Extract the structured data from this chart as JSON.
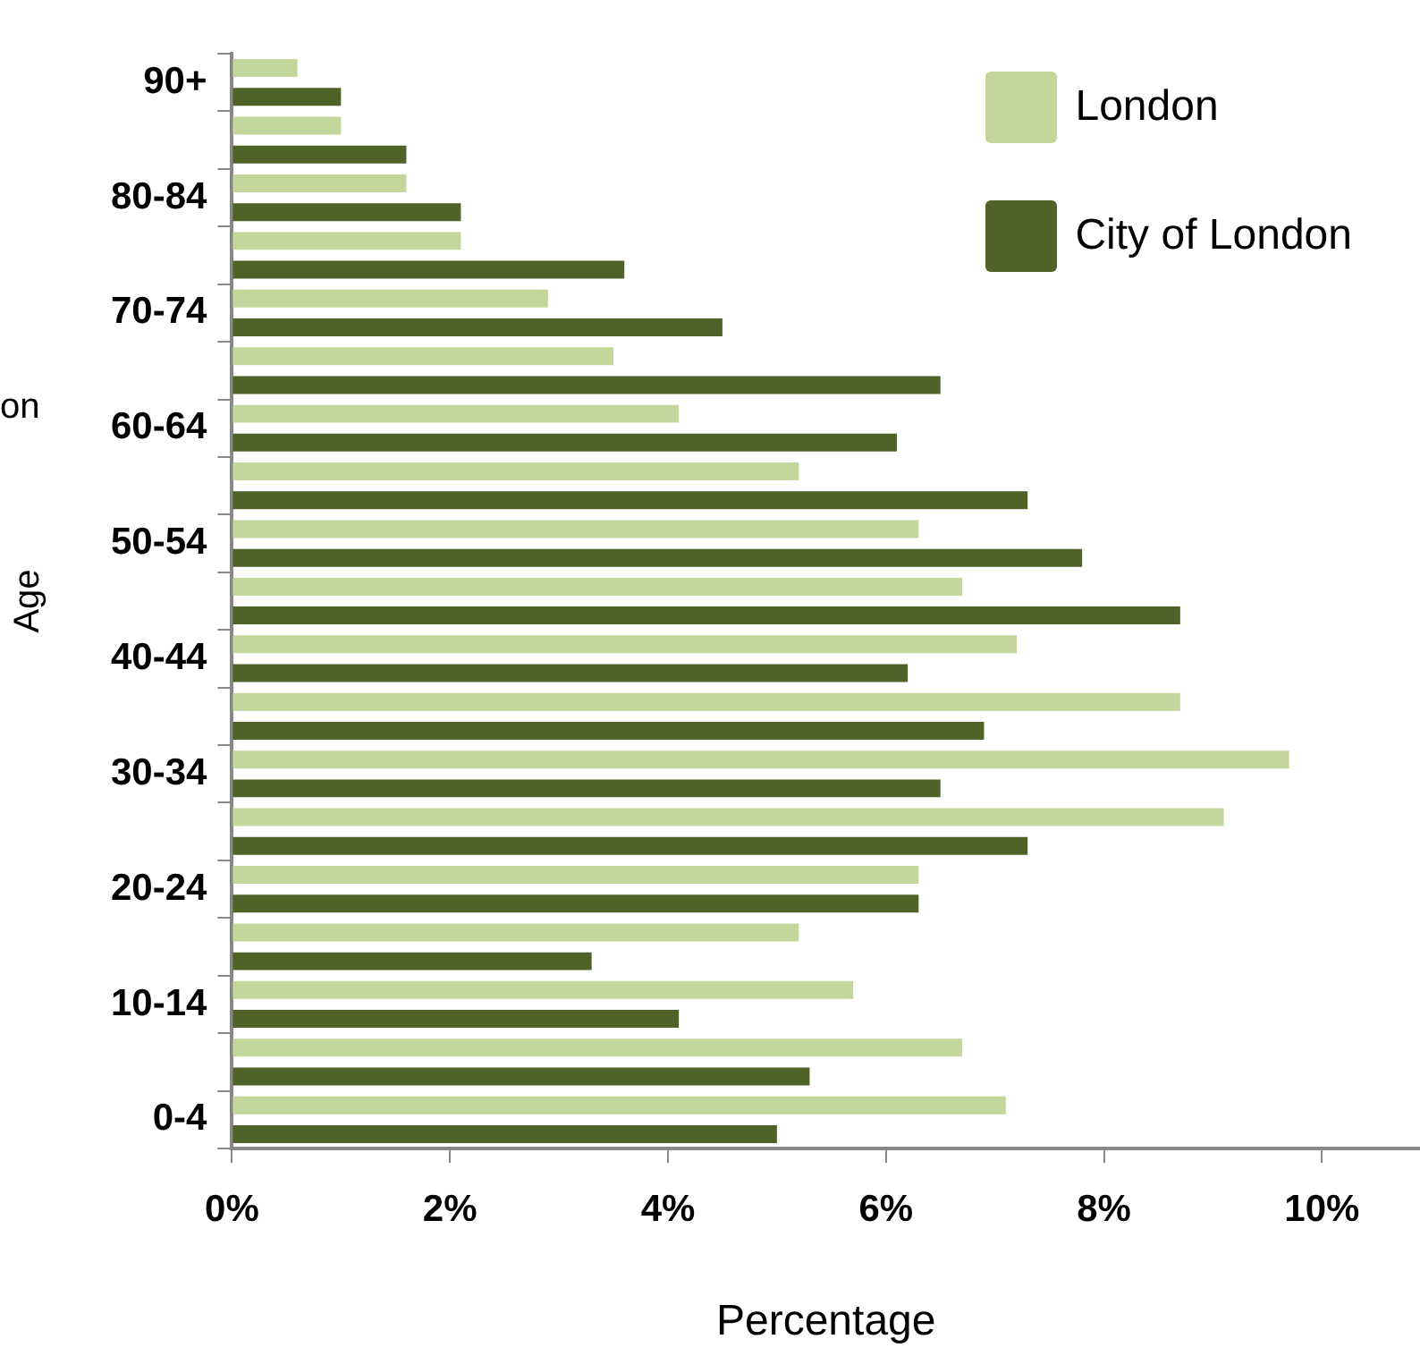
{
  "chart_data": {
    "type": "bar",
    "orientation": "horizontal",
    "ylabel": "Age",
    "xlabel": "Percentage",
    "annotations": [
      "on"
    ],
    "categories": [
      "90+",
      null,
      "80-84",
      null,
      "70-74",
      null,
      "60-64",
      null,
      "50-54",
      null,
      "40-44",
      null,
      "30-34",
      null,
      "20-24",
      null,
      "10-14",
      null,
      "0-4"
    ],
    "series": [
      {
        "name": "London",
        "color": "#c3d69b",
        "values": [
          0.6,
          1.0,
          1.6,
          2.1,
          2.9,
          3.5,
          4.1,
          5.2,
          6.3,
          6.7,
          7.2,
          8.7,
          9.7,
          9.1,
          6.3,
          5.2,
          5.7,
          6.7,
          7.1
        ]
      },
      {
        "name": "City of London",
        "color": "#4f6228",
        "values": [
          1.0,
          1.6,
          2.1,
          3.6,
          4.5,
          6.5,
          6.1,
          7.3,
          7.8,
          8.7,
          6.2,
          6.9,
          6.5,
          7.3,
          6.3,
          3.3,
          4.1,
          5.3,
          5.0
        ]
      }
    ],
    "xlim": [
      0,
      10.9
    ],
    "xticks": [
      {
        "value": 0,
        "label": "0%"
      },
      {
        "value": 2,
        "label": "2%"
      },
      {
        "value": 4,
        "label": "4%"
      },
      {
        "value": 6,
        "label": "6%"
      },
      {
        "value": 8,
        "label": "8%"
      },
      {
        "value": 10,
        "label": "10%"
      }
    ],
    "grid": false,
    "legend": "top right"
  }
}
